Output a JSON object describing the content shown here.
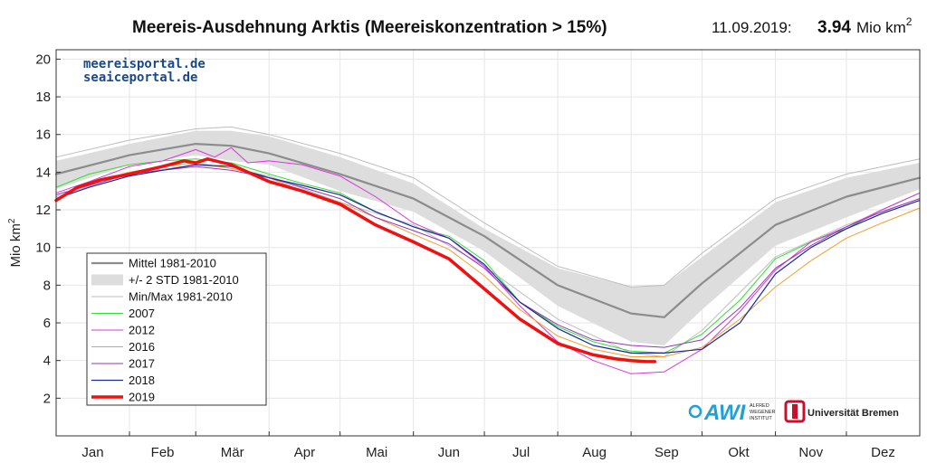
{
  "chart_data": {
    "type": "line",
    "title": "Meereis-Ausdehnung Arktis (Meereiskonzentration > 15%)",
    "date_label": "11.09.2019:",
    "current_value": "3.94",
    "current_unit": "Mio km",
    "ylabel": "Mio km",
    "ylim": [
      0,
      20.5
    ],
    "yticks": [
      2,
      4,
      6,
      8,
      10,
      12,
      14,
      16,
      18,
      20
    ],
    "xlim": [
      1,
      366
    ],
    "month_labels": [
      "Jan",
      "Feb",
      "Mär",
      "Apr",
      "Mai",
      "Jun",
      "Jul",
      "Aug",
      "Sep",
      "Okt",
      "Nov",
      "Dez"
    ],
    "grid": "on",
    "legend_position": "lower-left",
    "source_labels": [
      "meereisportal.de",
      "seaiceportal.de"
    ],
    "logos": [
      "AWI ALFRED WEGENER INSTITUT",
      "Universität Bremen"
    ],
    "band": {
      "name": "+/- 2 STD 1981-2010",
      "color": "#dddddd",
      "x": [
        1,
        32,
        60,
        75,
        91,
        121,
        152,
        182,
        213,
        244,
        258,
        274,
        305,
        335,
        366
      ],
      "upper": [
        14.6,
        15.5,
        16.2,
        16.2,
        15.9,
        14.8,
        13.4,
        11.0,
        8.9,
        7.9,
        8.0,
        9.5,
        12.4,
        13.7,
        14.5
      ],
      "lower": [
        13.1,
        14.4,
        14.9,
        14.6,
        14.4,
        13.0,
        11.9,
        9.8,
        6.9,
        5.0,
        4.8,
        6.7,
        10.1,
        11.6,
        13.1
      ]
    },
    "series": [
      {
        "name": "Mittel 1981-2010",
        "color": "#8c8c8c",
        "width": 2.2,
        "x": [
          1,
          32,
          60,
          75,
          91,
          121,
          152,
          182,
          213,
          244,
          258,
          274,
          305,
          335,
          366
        ],
        "y": [
          13.9,
          14.9,
          15.5,
          15.4,
          15.0,
          13.9,
          12.6,
          10.6,
          8.0,
          6.5,
          6.3,
          8.1,
          11.2,
          12.7,
          13.7
        ]
      },
      {
        "name": "Min/Max 1981-2010",
        "color": "#bdbdbd",
        "width": 1,
        "x": [
          1,
          32,
          60,
          75,
          91,
          121,
          152,
          182,
          213,
          244,
          258,
          274,
          305,
          335,
          366
        ],
        "y": [
          14.8,
          15.7,
          16.3,
          16.4,
          16.0,
          15.0,
          13.7,
          11.3,
          9.0,
          7.9,
          8.0,
          9.7,
          12.6,
          13.9,
          14.7
        ]
      },
      {
        "name": "Min/Max 1981-2010 (min)",
        "color": "#bdbdbd",
        "width": 1,
        "legend": false,
        "x": [
          1,
          32,
          60,
          75,
          91,
          121,
          152,
          182,
          213,
          244,
          258,
          274,
          305,
          335,
          366
        ],
        "y": [
          12.7,
          13.9,
          14.4,
          14.2,
          13.8,
          12.4,
          11.2,
          9.0,
          6.2,
          4.4,
          4.2,
          5.6,
          9.5,
          11.2,
          12.6
        ]
      },
      {
        "name": "2007",
        "color": "#33dd33",
        "width": 1,
        "x": [
          1,
          15,
          32,
          46,
          60,
          75,
          91,
          105,
          121,
          136,
          152,
          167,
          182,
          197,
          213,
          228,
          244,
          258,
          274,
          290,
          305,
          320,
          335,
          350,
          366
        ],
        "y": [
          13.2,
          13.9,
          14.4,
          14.6,
          14.7,
          14.5,
          13.9,
          13.4,
          12.9,
          11.9,
          11.1,
          10.6,
          9.3,
          7.1,
          5.8,
          5.0,
          4.5,
          4.4,
          5.4,
          7.2,
          9.4,
          10.3,
          11.0,
          12.0,
          12.9
        ]
      },
      {
        "name": "2012",
        "color": "#dd33dd",
        "width": 1,
        "x": [
          1,
          15,
          32,
          46,
          60,
          68,
          75,
          82,
          91,
          105,
          121,
          136,
          152,
          167,
          182,
          197,
          213,
          228,
          244,
          258,
          274,
          290,
          305,
          320,
          335,
          350,
          366
        ],
        "y": [
          12.9,
          13.5,
          14.3,
          14.6,
          15.2,
          14.8,
          15.3,
          14.5,
          14.6,
          14.4,
          13.8,
          12.7,
          11.3,
          10.5,
          9.0,
          6.9,
          5.0,
          4.0,
          3.3,
          3.4,
          4.6,
          6.6,
          8.8,
          10.3,
          11.1,
          12.0,
          12.9
        ]
      },
      {
        "name": "2016",
        "color": "#f0a030",
        "width": 1,
        "x": [
          1,
          15,
          32,
          46,
          60,
          75,
          91,
          105,
          121,
          136,
          152,
          167,
          182,
          197,
          213,
          228,
          244,
          258,
          274,
          290,
          305,
          320,
          335,
          350,
          366
        ],
        "y": [
          12.6,
          13.4,
          14.0,
          14.3,
          14.5,
          14.2,
          13.7,
          13.0,
          12.4,
          11.6,
          10.7,
          9.9,
          8.5,
          6.7,
          5.3,
          4.6,
          4.2,
          4.2,
          4.7,
          6.2,
          7.9,
          9.3,
          10.5,
          11.3,
          12.1
        ]
      },
      {
        "name": "2017",
        "color": "#9933bb",
        "width": 1,
        "x": [
          1,
          15,
          32,
          46,
          60,
          75,
          91,
          105,
          121,
          136,
          152,
          167,
          182,
          197,
          213,
          228,
          244,
          258,
          274,
          290,
          305,
          320,
          335,
          350,
          366
        ],
        "y": [
          12.8,
          13.3,
          13.9,
          14.1,
          14.3,
          14.1,
          13.7,
          13.2,
          12.6,
          11.6,
          10.9,
          10.2,
          8.9,
          7.1,
          5.9,
          5.1,
          4.8,
          4.7,
          5.1,
          6.8,
          8.9,
          10.1,
          11.1,
          11.9,
          12.6
        ]
      },
      {
        "name": "2018",
        "color": "#1a2a99",
        "width": 1.2,
        "x": [
          1,
          15,
          32,
          46,
          60,
          75,
          91,
          105,
          121,
          136,
          152,
          167,
          182,
          197,
          213,
          228,
          244,
          258,
          274,
          290,
          305,
          320,
          335,
          350,
          366
        ],
        "y": [
          12.6,
          13.2,
          13.8,
          14.1,
          14.4,
          14.3,
          13.7,
          13.3,
          12.8,
          11.9,
          11.1,
          10.5,
          9.1,
          7.1,
          5.7,
          4.8,
          4.4,
          4.4,
          4.6,
          6.0,
          8.6,
          10.0,
          11.0,
          11.8,
          12.5
        ]
      },
      {
        "name": "2019",
        "color": "#ee1111",
        "width": 3.5,
        "x": [
          1,
          10,
          20,
          32,
          46,
          55,
          60,
          65,
          75,
          91,
          105,
          121,
          136,
          152,
          167,
          182,
          197,
          213,
          228,
          237,
          244,
          250,
          254
        ],
        "y": [
          12.5,
          13.2,
          13.6,
          13.9,
          14.3,
          14.6,
          14.5,
          14.7,
          14.4,
          13.5,
          13.0,
          12.3,
          11.2,
          10.3,
          9.4,
          7.8,
          6.2,
          4.9,
          4.3,
          4.1,
          4.0,
          3.95,
          3.94
        ]
      }
    ]
  }
}
